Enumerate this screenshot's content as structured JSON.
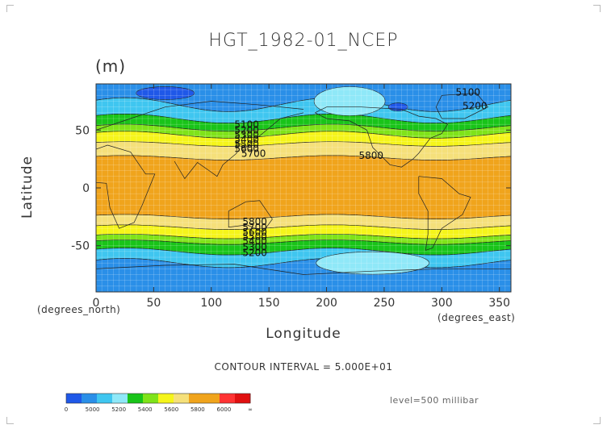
{
  "chart_data": {
    "type": "heatmap",
    "title": "HGT_1982-01_NCEP",
    "units": "(m)",
    "xlabel": "Longitude",
    "ylabel": "Latitude",
    "x_units_left": "(degrees_north)",
    "x_units_right": "(degrees_east)",
    "xlim": [
      0,
      360
    ],
    "ylim": [
      -90,
      90
    ],
    "x_ticks": [
      0,
      50,
      100,
      150,
      200,
      250,
      300,
      350
    ],
    "y_ticks": [
      50,
      0,
      -50
    ],
    "contour_interval_text": "CONTOUR INTERVAL = 5.000E+01",
    "level_text": "level=500 millibar",
    "grid": true,
    "contour_labels": [
      {
        "text": "5100",
        "lon": 312,
        "lat": 80
      },
      {
        "text": "5200",
        "lon": 318,
        "lat": 68
      },
      {
        "text": "5100",
        "lon": 120,
        "lat": 52
      },
      {
        "text": "5200",
        "lon": 120,
        "lat": 47
      },
      {
        "text": "5300",
        "lon": 120,
        "lat": 43
      },
      {
        "text": "5400",
        "lon": 120,
        "lat": 39
      },
      {
        "text": "5500",
        "lon": 120,
        "lat": 35
      },
      {
        "text": "5600",
        "lon": 120,
        "lat": 31
      },
      {
        "text": "5700",
        "lon": 126,
        "lat": 27
      },
      {
        "text": "5800",
        "lon": 228,
        "lat": 25
      },
      {
        "text": "5800",
        "lon": 127,
        "lat": -32
      },
      {
        "text": "5700",
        "lon": 127,
        "lat": -37
      },
      {
        "text": "5600",
        "lon": 127,
        "lat": -41
      },
      {
        "text": "5500",
        "lon": 127,
        "lat": -45
      },
      {
        "text": "5400",
        "lon": 127,
        "lat": -49
      },
      {
        "text": "5300",
        "lon": 127,
        "lat": -54
      },
      {
        "text": "5200",
        "lon": 127,
        "lat": -59
      }
    ],
    "colorbar": {
      "labels": [
        "0",
        "5000",
        "5200",
        "5400",
        "5600",
        "5800",
        "6000",
        "∞"
      ],
      "colors": [
        "#1f58e8",
        "#2a8fe8",
        "#3fc6f0",
        "#8fe8f8",
        "#19c419",
        "#7fe319",
        "#f5f51a",
        "#f5e07a",
        "#f0a41c",
        "#f0a41c",
        "#ff3333",
        "#e01010"
      ]
    }
  }
}
